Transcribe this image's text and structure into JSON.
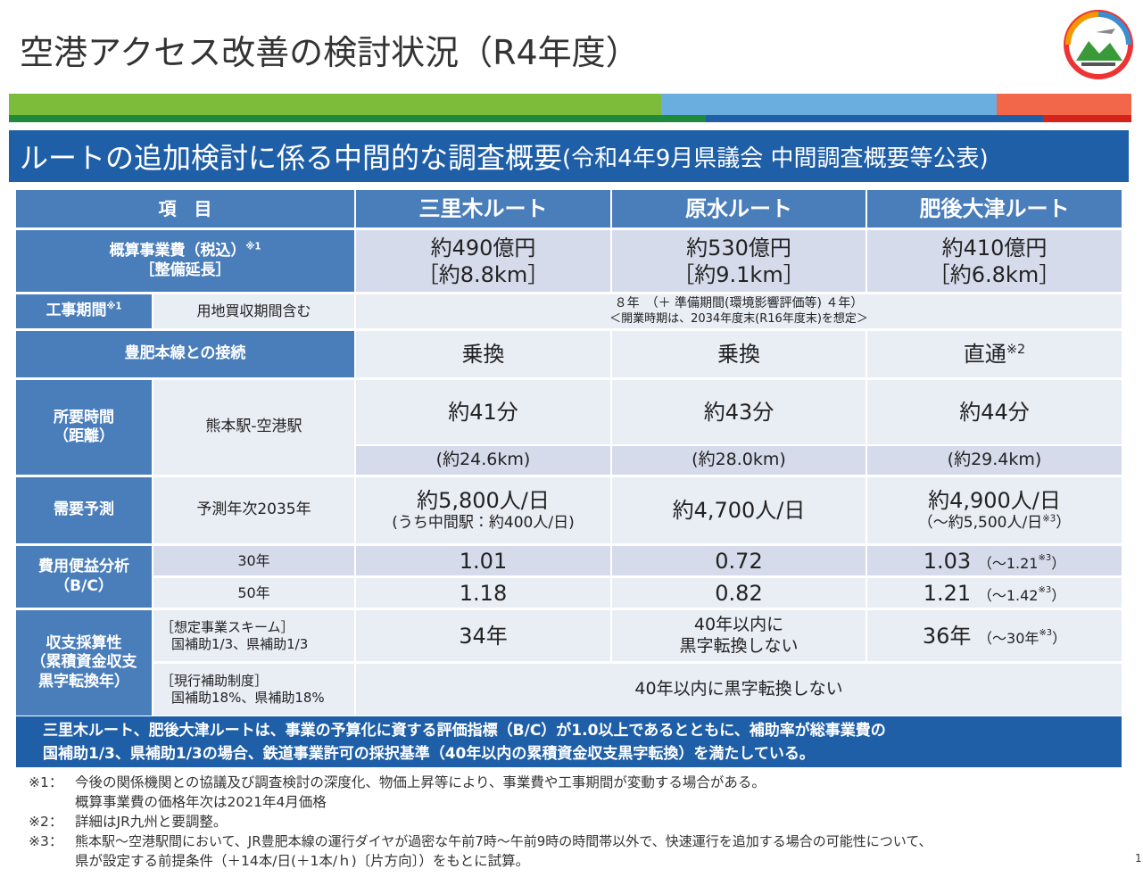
{
  "header": {
    "title": "空港アクセス改善の検討状況（R4年度）"
  },
  "section": {
    "title": "ルートの追加検討に係る中間的な調査概要",
    "subtitle": "(令和4年9月県議会 中間調査概要等公表)"
  },
  "table": {
    "columns": [
      "項　目",
      "三里木ルート",
      "原水ルート",
      "肥後大津ルート"
    ],
    "cost": {
      "label": "概算事業費（税込）",
      "note": "※1",
      "label2": "［整備延長］",
      "cells": [
        [
          "約490億円",
          "［約8.8km］"
        ],
        [
          "約530億円",
          "［約9.1km］"
        ],
        [
          "約410億円",
          "［約6.8km］"
        ]
      ]
    },
    "period": {
      "label": "工事期間",
      "note": "※1",
      "sublabel": "用地買収期間含む",
      "text": "８年　（＋ 準備期間(環境影響評価等) ４年）",
      "text2": "＜開業時期は、2034年度末(R16年度末)を想定＞"
    },
    "connection": {
      "label": "豊肥本線との接続",
      "cells": [
        "乗換",
        "乗換",
        "直通"
      ],
      "note": "※2"
    },
    "time": {
      "label": "所要時間",
      "label2": "（距離）",
      "sublabel": "熊本駅-空港駅",
      "times": [
        "約41分",
        "約43分",
        "約44分"
      ],
      "distances": [
        "(約24.6km)",
        "(約28.0km)",
        "(約29.4km)"
      ]
    },
    "demand": {
      "label": "需要予測",
      "sublabel": "予測年次2035年",
      "cells": [
        "約5,800人/日",
        "約4,700人/日",
        "約4,900人/日"
      ],
      "sub1": "(うち中間駅：約400人/日)",
      "sub3": "（～約5,500人/日",
      "sub3_note": "※3",
      "sub3_end": "）"
    },
    "bc": {
      "label": "費用便益分析",
      "label2": "（B/C）",
      "rows": [
        {
          "year": "30年",
          "values": [
            "1.01",
            "0.72",
            "1.03"
          ],
          "extra": "（～1.21",
          "extra_note": "※3",
          "extra_end": "）"
        },
        {
          "year": "50年",
          "values": [
            "1.18",
            "0.82",
            "1.21"
          ],
          "extra": "（～1.42",
          "extra_note": "※3",
          "extra_end": "）"
        }
      ]
    },
    "income": {
      "label": "収支採算性",
      "label2": "（累積資金収支",
      "label3": "黒字転換年）",
      "scheme": {
        "sub1": "［想定事業スキーム］",
        "sub2": "国補助1/3、県補助1/3",
        "cells": [
          "34年",
          "40年以内に",
          "黒字転換しない",
          "36年"
        ],
        "extra": "（～30年",
        "extra_note": "※3",
        "extra_end": "）"
      },
      "current": {
        "sub1": "［現行補助制度］",
        "sub2": "国補助18%、県補助18%",
        "text": "40年以内に黒字転換しない"
      }
    }
  },
  "summary": [
    "三里木ルート、肥後大津ルートは、事業の予算化に資する評価指標（B/C）が1.0以上であるとともに、補助率が総事業費の",
    "国補助1/3、県補助1/3の場合、鉄道事業許可の採択基準（40年以内の累積資金収支黒字転換）を満たしている。"
  ],
  "footnotes": [
    {
      "mark": "※1：",
      "lines": [
        "今後の関係機関との協議及び調査検討の深度化、物価上昇等により、事業費や工事期間が変動する場合がある。",
        "概算事業費の価格年次は2021年4月価格"
      ]
    },
    {
      "mark": "※2：",
      "lines": [
        "詳細はJR九州と要調整。"
      ]
    },
    {
      "mark": "※3：",
      "lines": [
        "熊本駅～空港駅間において、JR豊肥本線の運行ダイヤが過密な午前7時～午前9時の時間帯以外で、快速運行を追加する場合の可能性について、",
        "県が設定する前提条件（＋14本/日(＋1本/ｈ)〔片方向〕）をもとに試算。"
      ]
    }
  ],
  "page_number": "1"
}
